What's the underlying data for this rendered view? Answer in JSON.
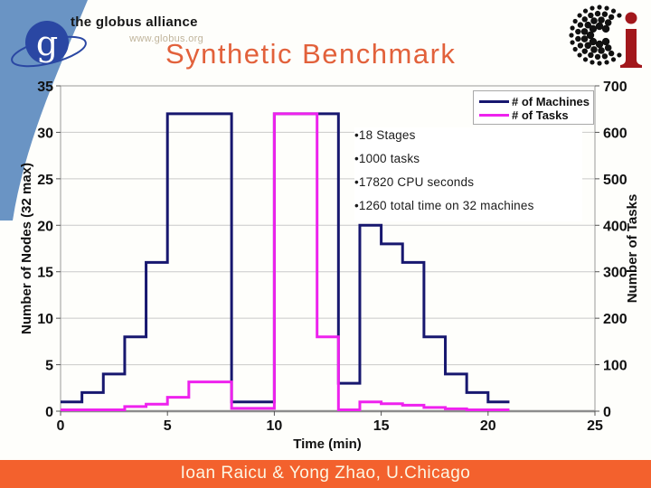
{
  "header": {
    "brand": "the globus alliance",
    "brand_url": "www.globus.org",
    "brand_monogram": "g",
    "title": "Synthetic Benchmark"
  },
  "annotations": {
    "items": [
      "•18 Stages",
      "•1000 tasks",
      "•17820 CPU seconds",
      "•1260 total time on 32 machines"
    ]
  },
  "footer": {
    "credit": "Ioan Raicu & Yong Zhao, U.Chicago"
  },
  "colors": {
    "title": "#E2613B",
    "footer_bg": "#F3612D",
    "footer_text": "#FCF6E3",
    "machines_line": "#17176F",
    "tasks_line": "#EE22EE",
    "globus_band_blue": "#6A94C4",
    "globus_circle_blue": "#2A47A3",
    "ci_red": "#A2171C",
    "gridline": "#C9C9C9",
    "axis": "#8C8C8C"
  },
  "chart_data": {
    "type": "line",
    "subtype": "step",
    "title": "",
    "xlabel": "Time (min)",
    "ylabel_left": "Number of Nodes (32 max)",
    "ylabel_right": "Number of Tasks",
    "xlim": [
      0,
      25
    ],
    "ylim_left": [
      0,
      35
    ],
    "ylim_right": [
      0,
      700
    ],
    "x_ticks": [
      0,
      5,
      10,
      15,
      20,
      25
    ],
    "left_ticks": [
      0,
      5,
      10,
      15,
      20,
      25,
      30,
      35
    ],
    "right_ticks": [
      0,
      100,
      200,
      300,
      400,
      500,
      600,
      700
    ],
    "grid": "horizontal",
    "legend_position": "top-right",
    "series": [
      {
        "name": "# of Machines",
        "axis": "left",
        "color": "#17176F",
        "steps": [
          [
            0,
            1
          ],
          [
            1,
            2
          ],
          [
            2,
            4
          ],
          [
            3,
            8
          ],
          [
            4,
            16
          ],
          [
            5,
            32
          ],
          [
            8,
            1
          ],
          [
            10,
            32
          ],
          [
            13,
            3
          ],
          [
            14,
            20
          ],
          [
            15,
            18
          ],
          [
            16,
            16
          ],
          [
            17,
            8
          ],
          [
            18,
            4
          ],
          [
            19,
            2
          ],
          [
            20,
            1
          ]
        ],
        "end_x": 21
      },
      {
        "name": "# of Tasks",
        "axis": "right",
        "color": "#EE22EE",
        "steps": [
          [
            0,
            3
          ],
          [
            3,
            10
          ],
          [
            4,
            15
          ],
          [
            5,
            30
          ],
          [
            6,
            63
          ],
          [
            8,
            6
          ],
          [
            10,
            640
          ],
          [
            12,
            160
          ],
          [
            13,
            3
          ],
          [
            14,
            20
          ],
          [
            15,
            16
          ],
          [
            16,
            13
          ],
          [
            17,
            8
          ],
          [
            18,
            5
          ],
          [
            19,
            3
          ]
        ],
        "end_x": 21
      }
    ]
  }
}
